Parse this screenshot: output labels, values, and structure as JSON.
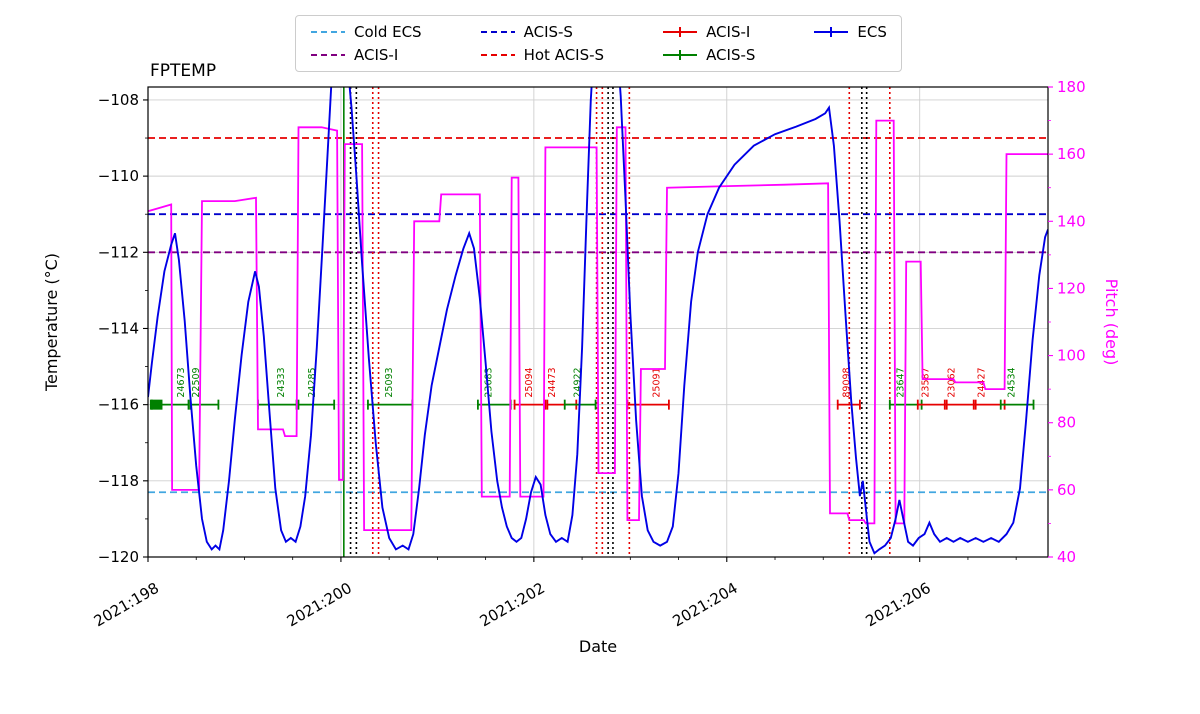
{
  "chart_data": {
    "type": "line",
    "title": "FPTEMP",
    "xlabel": "Date",
    "ylabel_left": "Temperature (°C)",
    "ylabel_right": "Pitch (deg)",
    "xlim": [
      198.0,
      207.33
    ],
    "x_major_ticks": [
      198,
      200,
      202,
      204,
      206
    ],
    "x_tick_labels": [
      "2021:198",
      "2021:200",
      "2021:202",
      "2021:204",
      "2021:206"
    ],
    "x_minor_ticks": [
      198.5,
      199.0,
      199.5,
      200.5,
      201.0,
      201.5,
      202.5,
      203.0,
      203.5,
      204.5,
      205.0,
      205.5,
      206.5,
      207.0
    ],
    "temp_ylim": [
      -120.0,
      -107.66
    ],
    "temp_ticks": [
      -108,
      -110,
      -112,
      -114,
      -116,
      -118,
      -120
    ],
    "temp_tick_labels": [
      "−108",
      "−110",
      "−112",
      "−114",
      "−116",
      "−118",
      "−120"
    ],
    "temp_minor_ticks": [
      -109,
      -111,
      -113,
      -115,
      -117,
      -119
    ],
    "pitch_ylim": [
      40,
      180
    ],
    "pitch_ticks": [
      40,
      60,
      80,
      100,
      120,
      140,
      160,
      180
    ],
    "pitch_minor_ticks": [
      50,
      70,
      90,
      110,
      130,
      150,
      170
    ],
    "grid": true,
    "legend_position": "top-center",
    "colors": {
      "ecs": "#0000e6",
      "pitch": "#ff00ff",
      "green": "#008000",
      "red": "#e60000",
      "cold_ecs": "#41a6e0",
      "acis_i_limit": "#800080",
      "acis_s_limit": "#0000cc",
      "hot_acis_s": "#e60000",
      "black": "#000000"
    },
    "limit_lines": [
      {
        "label": "Cold ECS",
        "temp": -118.3,
        "color": "#41a6e0"
      },
      {
        "label": "ACIS-I",
        "temp": -112.0,
        "color": "#800080"
      },
      {
        "label": "ACIS-S",
        "temp": -111.0,
        "color": "#0000cc"
      },
      {
        "label": "Hot ACIS-S",
        "temp": -109.0,
        "color": "#e60000"
      }
    ],
    "vlines": [
      {
        "day": 200.03,
        "color": "#008000",
        "style": "solid"
      },
      {
        "day": 200.1,
        "color": "#000000",
        "style": "dotted"
      },
      {
        "day": 200.16,
        "color": "#000000",
        "style": "dotted"
      },
      {
        "day": 200.33,
        "color": "#e60000",
        "style": "dotted"
      },
      {
        "day": 200.39,
        "color": "#e60000",
        "style": "dotted"
      },
      {
        "day": 202.65,
        "color": "#e60000",
        "style": "dotted"
      },
      {
        "day": 202.71,
        "color": "#e60000",
        "style": "dotted"
      },
      {
        "day": 202.77,
        "color": "#000000",
        "style": "dotted"
      },
      {
        "day": 202.82,
        "color": "#000000",
        "style": "dotted"
      },
      {
        "day": 202.99,
        "color": "#e60000",
        "style": "dotted"
      },
      {
        "day": 205.27,
        "color": "#e60000",
        "style": "dotted"
      },
      {
        "day": 205.4,
        "color": "#000000",
        "style": "dotted"
      },
      {
        "day": 205.45,
        "color": "#000000",
        "style": "dotted"
      },
      {
        "day": 205.69,
        "color": "#e60000",
        "style": "dotted"
      }
    ],
    "obs_y": -116,
    "obs_block": {
      "start": 198.02,
      "end": 198.15,
      "color": "green"
    },
    "obs_segments": [
      {
        "id": "24673",
        "color": "green",
        "start": 198.04,
        "end": 198.42,
        "label_day": 198.34
      },
      {
        "id": "22509",
        "color": "green",
        "start": 198.44,
        "end": 198.73,
        "label_day": 198.5
      },
      {
        "id": "24333",
        "color": "green",
        "start": 199.14,
        "end": 199.54,
        "label_day": 199.38
      },
      {
        "id": "24285",
        "color": "green",
        "start": 199.56,
        "end": 199.93,
        "label_day": 199.7
      },
      {
        "id": "25093",
        "color": "green",
        "start": 200.28,
        "end": 200.74,
        "label_day": 200.5
      },
      {
        "id": "23683",
        "color": "green",
        "start": 201.42,
        "end": 201.76,
        "label_day": 201.53
      },
      {
        "id": "25094",
        "color": "red",
        "start": 201.8,
        "end": 202.12,
        "label_day": 201.95
      },
      {
        "id": "24473",
        "color": "red",
        "start": 202.14,
        "end": 202.44,
        "label_day": 202.19
      },
      {
        "id": "24922",
        "color": "green",
        "start": 202.32,
        "end": 202.64,
        "label_day": 202.45
      },
      {
        "id": "25091",
        "color": "red",
        "start": 202.97,
        "end": 203.4,
        "label_day": 203.27
      },
      {
        "id": "89098",
        "color": "red",
        "start": 205.15,
        "end": 205.38,
        "label_day": 205.24
      },
      {
        "id": "23647",
        "color": "green",
        "start": 205.69,
        "end": 206.02,
        "label_day": 205.8
      },
      {
        "id": "23587",
        "color": "red",
        "start": 205.98,
        "end": 206.28,
        "label_day": 206.06
      },
      {
        "id": "23062",
        "color": "red",
        "start": 206.26,
        "end": 206.58,
        "label_day": 206.33
      },
      {
        "id": "24427",
        "color": "red",
        "start": 206.56,
        "end": 206.88,
        "label_day": 206.64
      },
      {
        "id": "24534",
        "color": "green",
        "start": 206.84,
        "end": 207.18,
        "label_day": 206.95
      }
    ],
    "ecs_series": [
      [
        198.0,
        -115.8
      ],
      [
        198.04,
        -114.9
      ],
      [
        198.1,
        -113.7
      ],
      [
        198.17,
        -112.5
      ],
      [
        198.24,
        -111.8
      ],
      [
        198.28,
        -111.5
      ],
      [
        198.32,
        -112.2
      ],
      [
        198.38,
        -113.8
      ],
      [
        198.44,
        -115.8
      ],
      [
        198.5,
        -117.6
      ],
      [
        198.56,
        -119.0
      ],
      [
        198.61,
        -119.6
      ],
      [
        198.66,
        -119.8
      ],
      [
        198.7,
        -119.7
      ],
      [
        198.74,
        -119.8
      ],
      [
        198.78,
        -119.3
      ],
      [
        198.84,
        -118.0
      ],
      [
        198.9,
        -116.4
      ],
      [
        198.97,
        -114.7
      ],
      [
        199.04,
        -113.3
      ],
      [
        199.11,
        -112.5
      ],
      [
        199.15,
        -112.9
      ],
      [
        199.2,
        -114.2
      ],
      [
        199.26,
        -116.2
      ],
      [
        199.32,
        -118.2
      ],
      [
        199.38,
        -119.3
      ],
      [
        199.43,
        -119.6
      ],
      [
        199.48,
        -119.5
      ],
      [
        199.53,
        -119.6
      ],
      [
        199.58,
        -119.2
      ],
      [
        199.63,
        -118.4
      ],
      [
        199.69,
        -116.8
      ],
      [
        199.75,
        -114.5
      ],
      [
        199.81,
        -111.8
      ],
      [
        199.86,
        -109.5
      ],
      [
        199.9,
        -107.6
      ],
      [
        199.94,
        -106.6
      ],
      [
        200.0,
        -106.3
      ],
      [
        200.06,
        -106.8
      ],
      [
        200.11,
        -108.2
      ],
      [
        200.16,
        -110.0
      ],
      [
        200.22,
        -112.3
      ],
      [
        200.29,
        -114.8
      ],
      [
        200.36,
        -117.0
      ],
      [
        200.43,
        -118.7
      ],
      [
        200.5,
        -119.5
      ],
      [
        200.57,
        -119.8
      ],
      [
        200.64,
        -119.7
      ],
      [
        200.7,
        -119.8
      ],
      [
        200.75,
        -119.4
      ],
      [
        200.81,
        -118.2
      ],
      [
        200.87,
        -116.8
      ],
      [
        200.94,
        -115.5
      ],
      [
        201.02,
        -114.5
      ],
      [
        201.1,
        -113.5
      ],
      [
        201.19,
        -112.6
      ],
      [
        201.27,
        -111.9
      ],
      [
        201.33,
        -111.5
      ],
      [
        201.38,
        -111.9
      ],
      [
        201.44,
        -113.2
      ],
      [
        201.5,
        -114.9
      ],
      [
        201.56,
        -116.7
      ],
      [
        201.62,
        -118.0
      ],
      [
        201.67,
        -118.7
      ],
      [
        201.72,
        -119.2
      ],
      [
        201.77,
        -119.5
      ],
      [
        201.82,
        -119.6
      ],
      [
        201.87,
        -119.5
      ],
      [
        201.92,
        -119.0
      ],
      [
        201.97,
        -118.3
      ],
      [
        202.02,
        -117.9
      ],
      [
        202.07,
        -118.1
      ],
      [
        202.12,
        -118.9
      ],
      [
        202.17,
        -119.4
      ],
      [
        202.23,
        -119.6
      ],
      [
        202.29,
        -119.5
      ],
      [
        202.35,
        -119.6
      ],
      [
        202.4,
        -118.9
      ],
      [
        202.45,
        -117.3
      ],
      [
        202.5,
        -114.5
      ],
      [
        202.55,
        -110.8
      ],
      [
        202.59,
        -108.0
      ],
      [
        202.63,
        -106.3
      ],
      [
        202.7,
        -105.6
      ],
      [
        202.78,
        -105.5
      ],
      [
        202.85,
        -106.1
      ],
      [
        202.9,
        -107.9
      ],
      [
        202.95,
        -110.6
      ],
      [
        203.0,
        -113.6
      ],
      [
        203.06,
        -116.4
      ],
      [
        203.12,
        -118.4
      ],
      [
        203.18,
        -119.3
      ],
      [
        203.24,
        -119.6
      ],
      [
        203.31,
        -119.7
      ],
      [
        203.38,
        -119.6
      ],
      [
        203.44,
        -119.2
      ],
      [
        203.5,
        -117.8
      ],
      [
        203.56,
        -115.5
      ],
      [
        203.63,
        -113.3
      ],
      [
        203.7,
        -112.0
      ],
      [
        203.8,
        -111.0
      ],
      [
        203.92,
        -110.3
      ],
      [
        204.08,
        -109.7
      ],
      [
        204.28,
        -109.2
      ],
      [
        204.5,
        -108.9
      ],
      [
        204.72,
        -108.7
      ],
      [
        204.92,
        -108.5
      ],
      [
        205.02,
        -108.35
      ],
      [
        205.06,
        -108.2
      ],
      [
        205.11,
        -109.2
      ],
      [
        205.17,
        -111.2
      ],
      [
        205.23,
        -113.6
      ],
      [
        205.29,
        -115.9
      ],
      [
        205.34,
        -117.4
      ],
      [
        205.38,
        -118.4
      ],
      [
        205.41,
        -118.0
      ],
      [
        205.44,
        -118.7
      ],
      [
        205.48,
        -119.6
      ],
      [
        205.53,
        -119.9
      ],
      [
        205.58,
        -119.8
      ],
      [
        205.64,
        -119.7
      ],
      [
        205.7,
        -119.5
      ],
      [
        205.75,
        -119.0
      ],
      [
        205.79,
        -118.5
      ],
      [
        205.83,
        -119.0
      ],
      [
        205.88,
        -119.6
      ],
      [
        205.93,
        -119.7
      ],
      [
        205.99,
        -119.5
      ],
      [
        206.05,
        -119.4
      ],
      [
        206.1,
        -119.1
      ],
      [
        206.15,
        -119.4
      ],
      [
        206.21,
        -119.6
      ],
      [
        206.28,
        -119.5
      ],
      [
        206.35,
        -119.6
      ],
      [
        206.42,
        -119.5
      ],
      [
        206.5,
        -119.6
      ],
      [
        206.58,
        -119.5
      ],
      [
        206.66,
        -119.6
      ],
      [
        206.74,
        -119.5
      ],
      [
        206.82,
        -119.6
      ],
      [
        206.9,
        -119.4
      ],
      [
        206.97,
        -119.1
      ],
      [
        207.04,
        -118.2
      ],
      [
        207.1,
        -116.5
      ],
      [
        207.17,
        -114.3
      ],
      [
        207.24,
        -112.6
      ],
      [
        207.3,
        -111.6
      ],
      [
        207.33,
        -111.4
      ]
    ],
    "pitch_series": [
      [
        198.0,
        143
      ],
      [
        198.12,
        144
      ],
      [
        198.24,
        145
      ],
      [
        198.25,
        60
      ],
      [
        198.53,
        60
      ],
      [
        198.56,
        146
      ],
      [
        198.9,
        146
      ],
      [
        199.12,
        147
      ],
      [
        199.14,
        78
      ],
      [
        199.4,
        78
      ],
      [
        199.42,
        76
      ],
      [
        199.54,
        76
      ],
      [
        199.56,
        168
      ],
      [
        199.8,
        168
      ],
      [
        199.96,
        167
      ],
      [
        199.98,
        63
      ],
      [
        200.02,
        63
      ],
      [
        200.04,
        163
      ],
      [
        200.22,
        163
      ],
      [
        200.24,
        48
      ],
      [
        200.73,
        48
      ],
      [
        200.76,
        140
      ],
      [
        201.02,
        140
      ],
      [
        201.04,
        148
      ],
      [
        201.44,
        148
      ],
      [
        201.46,
        58
      ],
      [
        201.75,
        58
      ],
      [
        201.77,
        153
      ],
      [
        201.84,
        153
      ],
      [
        201.86,
        58
      ],
      [
        202.1,
        58
      ],
      [
        202.12,
        162
      ],
      [
        202.65,
        162
      ],
      [
        202.67,
        65
      ],
      [
        202.84,
        65
      ],
      [
        202.86,
        168
      ],
      [
        202.95,
        168
      ],
      [
        202.97,
        51
      ],
      [
        203.09,
        51
      ],
      [
        203.11,
        96
      ],
      [
        203.36,
        96
      ],
      [
        203.38,
        150
      ],
      [
        203.9,
        150.4
      ],
      [
        204.6,
        150.9
      ],
      [
        205.05,
        151.3
      ],
      [
        205.07,
        53
      ],
      [
        205.25,
        53
      ],
      [
        205.27,
        51
      ],
      [
        205.42,
        51
      ],
      [
        205.44,
        50
      ],
      [
        205.53,
        50
      ],
      [
        205.55,
        170
      ],
      [
        205.73,
        170
      ],
      [
        205.75,
        50
      ],
      [
        205.84,
        50
      ],
      [
        205.86,
        128
      ],
      [
        206.01,
        128
      ],
      [
        206.03,
        93
      ],
      [
        206.35,
        93
      ],
      [
        206.37,
        92
      ],
      [
        206.66,
        92
      ],
      [
        206.68,
        90
      ],
      [
        206.88,
        90
      ],
      [
        206.9,
        160
      ],
      [
        207.33,
        160
      ]
    ],
    "legend": [
      {
        "label": "Cold ECS",
        "color": "#41a6e0",
        "style": "dashed"
      },
      {
        "label": "ACIS-I",
        "color": "#800080",
        "style": "dashed"
      },
      {
        "label": "ACIS-S",
        "color": "#0000cc",
        "style": "dashed"
      },
      {
        "label": "Hot ACIS-S",
        "color": "#e60000",
        "style": "dashed"
      },
      {
        "label": "ACIS-I",
        "color": "#e60000",
        "style": "plusline"
      },
      {
        "label": "ACIS-S",
        "color": "#008000",
        "style": "plusline"
      },
      {
        "label": "ECS",
        "color": "#0000e6",
        "style": "plusline"
      }
    ],
    "legend_columns": [
      [
        0,
        1
      ],
      [
        2,
        3
      ],
      [
        4,
        5
      ],
      [
        6
      ]
    ]
  }
}
